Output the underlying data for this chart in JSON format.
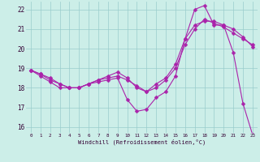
{
  "xlabel": "Windchill (Refroidissement éolien,°C)",
  "background_color": "#cceee8",
  "grid_color": "#99cccc",
  "line_color": "#aa22aa",
  "markersize": 2.5,
  "linewidth": 0.8,
  "xlim": [
    -0.5,
    23.5
  ],
  "ylim": [
    15.7,
    22.4
  ],
  "xticks": [
    0,
    1,
    2,
    3,
    4,
    5,
    6,
    7,
    8,
    9,
    10,
    11,
    12,
    13,
    14,
    15,
    16,
    17,
    18,
    19,
    20,
    21,
    22,
    23
  ],
  "yticks": [
    16,
    17,
    18,
    19,
    20,
    21,
    22
  ],
  "series1_x": [
    0,
    1,
    2,
    3,
    4,
    5,
    6,
    7,
    8,
    9,
    10,
    11,
    12,
    13,
    14,
    15,
    16,
    17,
    18,
    19,
    20,
    21,
    22,
    23
  ],
  "series1_y": [
    18.9,
    18.7,
    18.4,
    18.2,
    18.0,
    18.0,
    18.2,
    18.3,
    18.4,
    18.5,
    17.4,
    16.8,
    16.9,
    17.5,
    17.8,
    18.6,
    20.5,
    22.0,
    22.2,
    21.2,
    21.2,
    19.8,
    17.2,
    15.6
  ],
  "series2_x": [
    0,
    1,
    2,
    3,
    4,
    5,
    6,
    7,
    8,
    9,
    10,
    11,
    12,
    13,
    14,
    15,
    16,
    17,
    18,
    19,
    20,
    21,
    22,
    23
  ],
  "series2_y": [
    18.9,
    18.6,
    18.3,
    18.0,
    18.0,
    18.0,
    18.2,
    18.4,
    18.5,
    18.6,
    18.4,
    18.1,
    17.8,
    18.2,
    18.5,
    19.2,
    20.5,
    21.2,
    21.4,
    21.4,
    21.2,
    21.0,
    20.6,
    20.1
  ],
  "series3_x": [
    0,
    1,
    2,
    3,
    4,
    5,
    6,
    7,
    8,
    9,
    10,
    11,
    12,
    13,
    14,
    15,
    16,
    17,
    18,
    19,
    20,
    21,
    22,
    23
  ],
  "series3_y": [
    18.9,
    18.7,
    18.5,
    18.2,
    18.0,
    18.0,
    18.2,
    18.4,
    18.6,
    18.8,
    18.5,
    18.0,
    17.8,
    18.0,
    18.4,
    19.0,
    20.2,
    21.0,
    21.5,
    21.3,
    21.1,
    20.8,
    20.5,
    20.2
  ]
}
